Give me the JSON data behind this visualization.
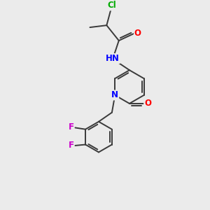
{
  "background_color": "#ebebeb",
  "bond_color": "#3a3a3a",
  "atom_colors": {
    "Cl": "#00aa00",
    "O": "#ff0000",
    "N": "#0000ff",
    "F": "#cc00cc",
    "C": "#3a3a3a",
    "H": "#555555"
  },
  "bond_width": 1.4,
  "dbo": 0.09,
  "font_size": 8.5
}
